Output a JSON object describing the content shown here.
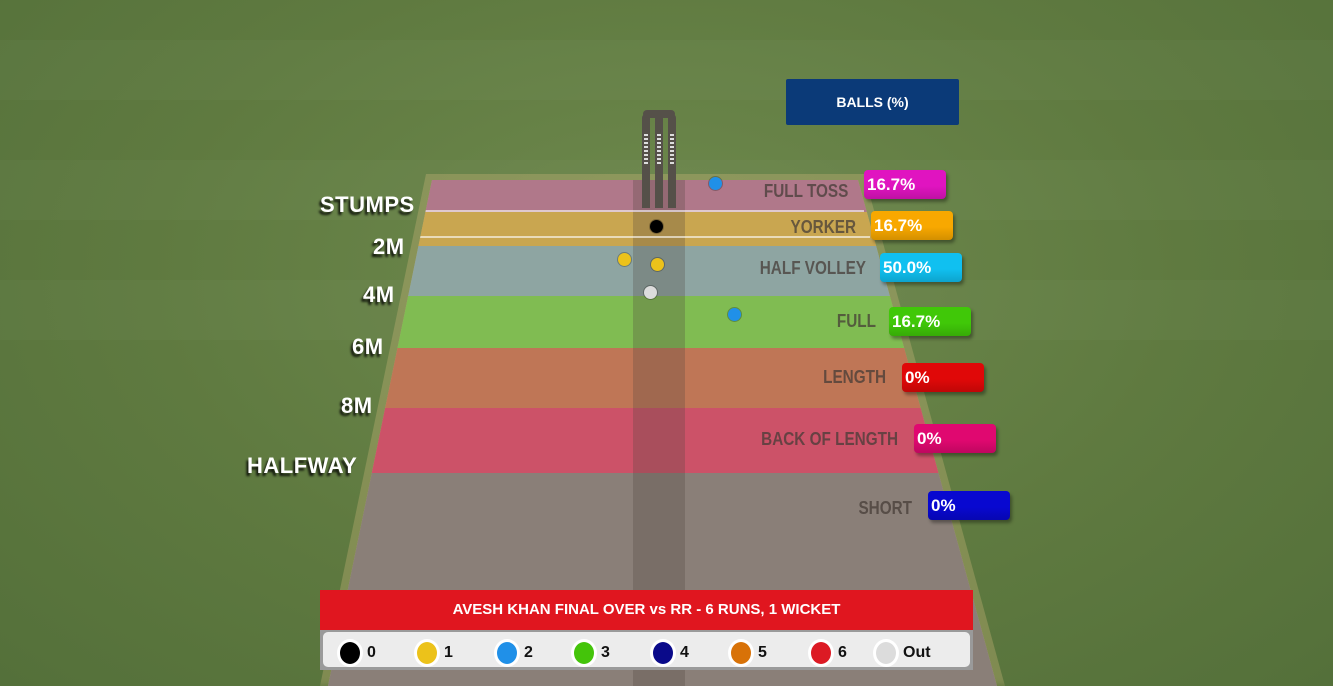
{
  "header": {
    "label": "BALLS (%)",
    "color": "#0b3a78"
  },
  "title": "AVESH KHAN FINAL OVER vs RR - 6 RUNS, 1 WICKET",
  "distance_markers": [
    "STUMPS",
    "2M",
    "4M",
    "6M",
    "8M",
    "HALFWAY"
  ],
  "legend": [
    {
      "label": "0",
      "color": "#000000"
    },
    {
      "label": "1",
      "color": "#ecc21a"
    },
    {
      "label": "2",
      "color": "#2090e8"
    },
    {
      "label": "3",
      "color": "#44c40a"
    },
    {
      "label": "4",
      "color": "#0a0a8a"
    },
    {
      "label": "5",
      "color": "#d87208"
    },
    {
      "label": "6",
      "color": "#dc1a24"
    },
    {
      "label": "Out",
      "color": "#dcdcdc"
    }
  ],
  "chart_data": {
    "type": "table",
    "title": "BALLS (%)",
    "zones": [
      {
        "name": "FULL TOSS",
        "percent_label": "16.7%",
        "value": 16.7,
        "tag_color": "#e014c0",
        "band_color": "#b0788a"
      },
      {
        "name": "YORKER",
        "percent_label": "16.7%",
        "value": 16.7,
        "tag_color": "#f8a800",
        "band_color": "#c9a650"
      },
      {
        "name": "HALF VOLLEY",
        "percent_label": "50.0%",
        "value": 50.0,
        "tag_color": "#10c0f0",
        "band_color": "#8ea5a2"
      },
      {
        "name": "FULL",
        "percent_label": "16.7%",
        "value": 16.7,
        "tag_color": "#40c808",
        "band_color": "#80bc52"
      },
      {
        "name": "LENGTH",
        "percent_label": "0%",
        "value": 0,
        "tag_color": "#e00808",
        "band_color": "#bf7656"
      },
      {
        "name": "BACK OF LENGTH",
        "percent_label": "0%",
        "value": 0,
        "tag_color": "#e00870",
        "band_color": "#cc5268"
      },
      {
        "name": "SHORT",
        "percent_label": "0%",
        "value": 0,
        "tag_color": "#0808d0",
        "band_color": "#8a7f78"
      }
    ],
    "deliveries": [
      {
        "zone": "FULL TOSS",
        "result": "2"
      },
      {
        "zone": "YORKER",
        "result": "0"
      },
      {
        "zone": "HALF VOLLEY",
        "result": "1"
      },
      {
        "zone": "HALF VOLLEY",
        "result": "1"
      },
      {
        "zone": "HALF VOLLEY",
        "result": "Out"
      },
      {
        "zone": "FULL",
        "result": "2"
      }
    ]
  }
}
